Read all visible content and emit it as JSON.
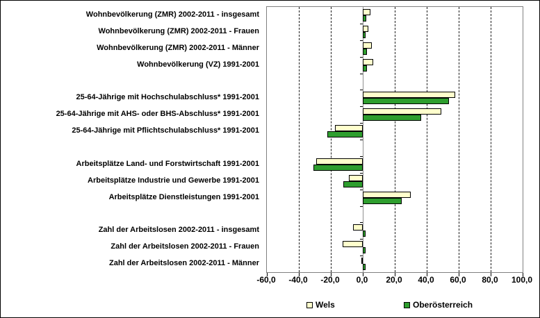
{
  "chart_data": {
    "type": "bar",
    "orientation": "horizontal",
    "categories": [
      "Wohnbevölkerung (ZMR) 2002-2011 - insgesamt",
      "Wohnbevölkerung (ZMR) 2002-2011 - Frauen",
      "Wohnbevölkerung (ZMR) 2002-2011 - Männer",
      "Wohnbevölkerung (VZ) 1991-2001",
      "25-64-Jährige mit Hochschulabschluss* 1991-2001",
      "25-64-Jährige mit AHS- oder BHS-Abschluss* 1991-2001",
      "25-64-Jährige mit Pflichtschulabschluss* 1991-2001",
      "Arbeitsplätze Land- und Forstwirtschaft 1991-2001",
      "Arbeitsplätze Industrie und Gewerbe 1991-2001",
      "Arbeitsplätze Dienstleistungen 1991-2001",
      "Zahl der Arbeitslosen 2002-2011 - insgesamt",
      "Zahl der Arbeitslosen 2002-2011 - Frauen",
      "Zahl der Arbeitslosen 2002-2011 - Männer"
    ],
    "groups": [
      [
        0,
        1,
        2,
        3
      ],
      [
        4,
        5,
        6
      ],
      [
        7,
        8,
        9
      ],
      [
        10,
        11,
        12
      ]
    ],
    "series": [
      {
        "name": "Wels",
        "color": "#FFFFCC",
        "values": [
          4.7,
          3.5,
          5.5,
          6.7,
          58.0,
          49.0,
          -17.5,
          -29.0,
          -8.8,
          30.0,
          -6.3,
          -12.4,
          -1.0
        ]
      },
      {
        "name": "Oberösterreich",
        "color": "#2E9E2E",
        "values": [
          2.2,
          1.8,
          2.6,
          2.6,
          54.0,
          36.5,
          -22.0,
          -31.0,
          -12.0,
          24.5,
          1.9,
          1.6,
          1.9
        ]
      }
    ],
    "x_axis": {
      "min": -60,
      "max": 100,
      "tick_step": 20,
      "tick_labels": [
        "-60,0",
        "-40,0",
        "-20,0",
        "0,0",
        "20,0",
        "40,0",
        "60,0",
        "80,0",
        "100,0"
      ]
    },
    "legend": [
      {
        "label": "Wels",
        "color": "#FFFFCC"
      },
      {
        "label": "Oberösterreich",
        "color": "#2E9E2E"
      }
    ],
    "grid": true,
    "colors": {
      "bar_border": "#000000",
      "gridline": "#1a1a1a",
      "axis_line": "#909090",
      "plot_border": "#808080"
    }
  }
}
